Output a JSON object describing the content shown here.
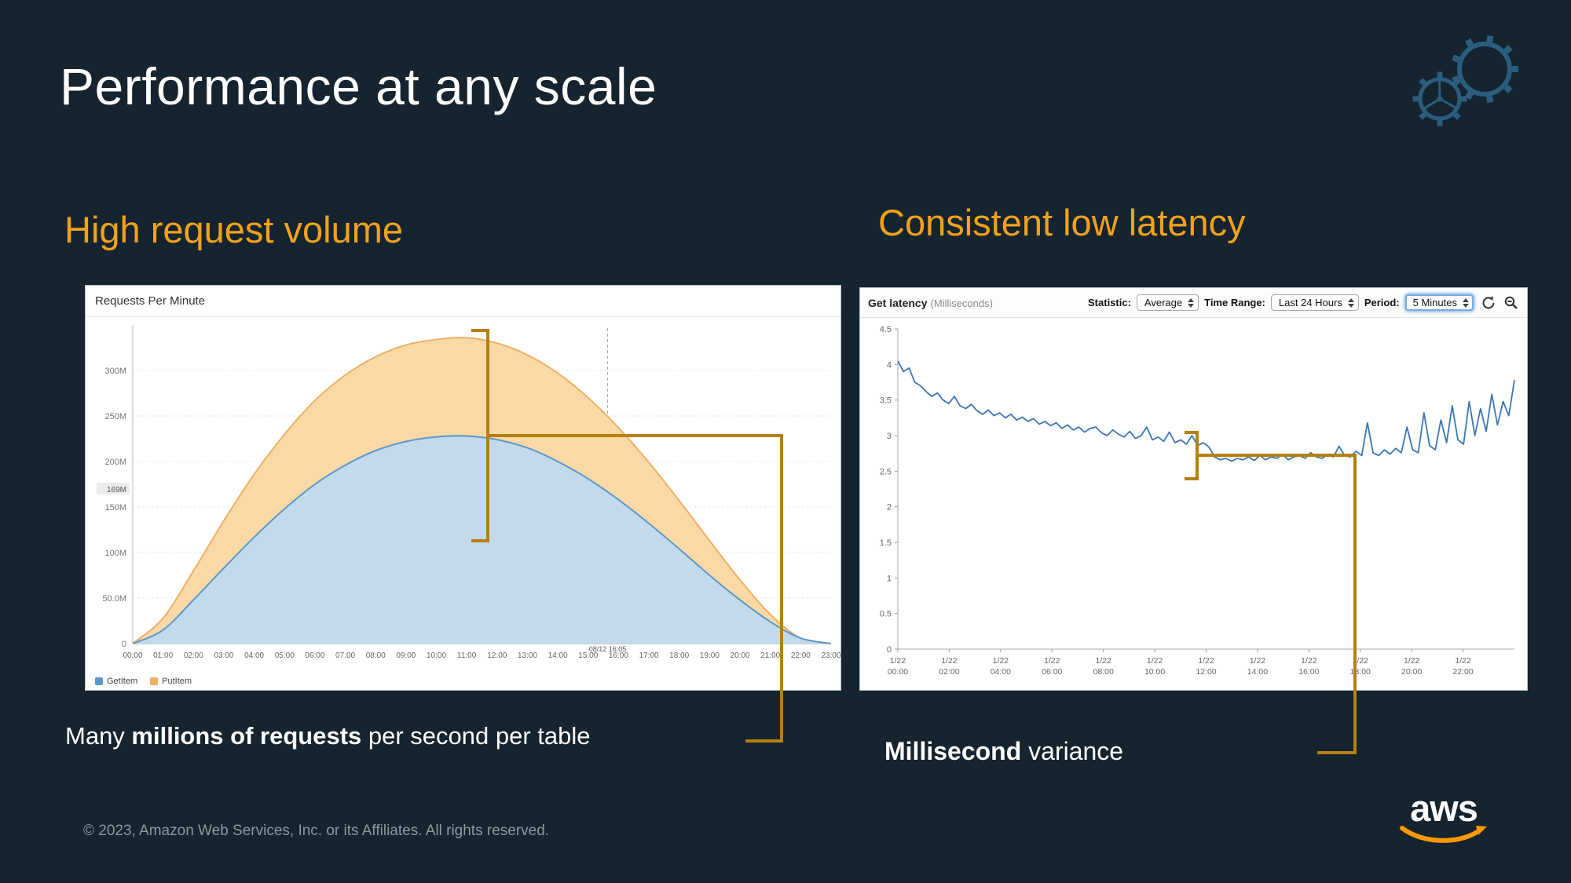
{
  "slide": {
    "title": "Performance at any scale",
    "footer": "© 2023, Amazon Web Services, Inc. or its Affiliates. All rights reserved.",
    "logo_text": "aws"
  },
  "sections": {
    "left": {
      "heading": "High request volume",
      "caption": {
        "prefix": "Many ",
        "bold": "millions of requests",
        "suffix": " per second per table"
      }
    },
    "right": {
      "heading": "Consistent low latency",
      "caption": {
        "prefix": "",
        "bold": "Millisecond",
        "suffix": " variance"
      }
    }
  },
  "cloudwatch": {
    "title_bold": "Get latency",
    "title_units": "(Milliseconds)",
    "statistic_label": "Statistic:",
    "statistic_value": "Average",
    "time_range_label": "Time Range:",
    "time_range_value": "Last 24 Hours",
    "period_label": "Period:",
    "period_value": "5 Minutes"
  },
  "icons": {
    "refresh": "circular-refresh-arrows",
    "zoom_out": "magnifier-with-minus",
    "decoration": "dynamodb-gears",
    "logo_swoosh": "aws-smile-arrow"
  },
  "colors": {
    "background": "#15242e",
    "accent_orange": "#f2a11d",
    "callout": "#b5800e",
    "aws_orange": "#ff9900",
    "latency_line": "#3c76b5"
  },
  "chart_data": [
    {
      "type": "area",
      "title": "Requests Per Minute",
      "x_labels": [
        "00:00",
        "01:00",
        "02:00",
        "03:00",
        "04:00",
        "05:00",
        "06:00",
        "07:00",
        "08:00",
        "09:00",
        "10:00",
        "11:00",
        "12:00",
        "13:00",
        "14:00",
        "15:00",
        "16:00",
        "17:00",
        "18:00",
        "19:00",
        "20:00",
        "21:00",
        "22:00",
        "23:00"
      ],
      "y_ticks": [
        "0",
        "50.0M",
        "100M",
        "150M",
        "200M",
        "250M",
        "300M"
      ],
      "y_tick_values": [
        0,
        50,
        100,
        150,
        200,
        250,
        300
      ],
      "ylim": [
        0,
        350
      ],
      "units": "requests per minute (millions)",
      "grid": true,
      "legend_position": "bottom-left",
      "series": [
        {
          "name": "GetItem",
          "color": "#5b97c9",
          "fill": "#c2daec",
          "values": [
            0,
            15,
            48,
            83,
            117,
            148,
            175,
            196,
            212,
            222,
            227,
            228,
            224,
            215,
            200,
            181,
            158,
            132,
            104,
            75,
            48,
            24,
            6,
            0
          ]
        },
        {
          "name": "PutItem",
          "color": "#eeb065",
          "fill": "#fad9a7",
          "values": [
            0,
            28,
            80,
            135,
            186,
            230,
            267,
            295,
            315,
            328,
            334,
            336,
            330,
            317,
            297,
            270,
            237,
            199,
            157,
            113,
            70,
            32,
            6,
            0
          ]
        }
      ],
      "annotations": {
        "crosshair_time_label": "08/12 16:05",
        "crosshair_x_fraction": 0.68,
        "crosshair_y_label": "169M",
        "crosshair_y_value": 169
      }
    },
    {
      "type": "line",
      "title": "Get latency (Milliseconds)",
      "ylim": [
        0,
        4.5
      ],
      "y_ticks": [
        "0",
        "0.5",
        "1",
        "1.5",
        "2",
        "2.5",
        "3",
        "3.5",
        "4",
        "4.5"
      ],
      "y_tick_values": [
        0,
        0.5,
        1,
        1.5,
        2,
        2.5,
        3,
        3.5,
        4,
        4.5
      ],
      "x_span_hours": 24,
      "x_ticks": [
        {
          "date": "1/22",
          "time": "00:00",
          "hour": 0
        },
        {
          "date": "1/22",
          "time": "02:00",
          "hour": 2
        },
        {
          "date": "1/22",
          "time": "04:00",
          "hour": 4
        },
        {
          "date": "1/22",
          "time": "06:00",
          "hour": 6
        },
        {
          "date": "1/22",
          "time": "08:00",
          "hour": 8
        },
        {
          "date": "1/22",
          "time": "10:00",
          "hour": 10
        },
        {
          "date": "1/22",
          "time": "12:00",
          "hour": 12
        },
        {
          "date": "1/22",
          "time": "14:00",
          "hour": 14
        },
        {
          "date": "1/22",
          "time": "16:00",
          "hour": 16
        },
        {
          "date": "1/22",
          "time": "18:00",
          "hour": 18
        },
        {
          "date": "1/22",
          "time": "20:00",
          "hour": 20
        },
        {
          "date": "1/22",
          "time": "22:00",
          "hour": 22
        }
      ],
      "grid": false,
      "line_color": "#3c76b5",
      "values": [
        4.05,
        3.9,
        3.95,
        3.75,
        3.7,
        3.62,
        3.55,
        3.6,
        3.5,
        3.45,
        3.55,
        3.42,
        3.38,
        3.44,
        3.35,
        3.3,
        3.36,
        3.28,
        3.32,
        3.25,
        3.3,
        3.22,
        3.26,
        3.2,
        3.24,
        3.16,
        3.2,
        3.14,
        3.18,
        3.1,
        3.15,
        3.08,
        3.12,
        3.05,
        3.1,
        3.12,
        3.04,
        3.0,
        3.08,
        3.02,
        2.98,
        3.06,
        2.96,
        3.0,
        3.12,
        2.94,
        2.98,
        2.92,
        3.05,
        2.9,
        2.94,
        2.88,
        3.0,
        2.86,
        2.9,
        2.84,
        2.7,
        2.66,
        2.68,
        2.64,
        2.68,
        2.66,
        2.7,
        2.65,
        2.72,
        2.66,
        2.7,
        2.68,
        2.74,
        2.66,
        2.7,
        2.72,
        2.68,
        2.76,
        2.7,
        2.68,
        2.74,
        2.7,
        2.85,
        2.72,
        2.7,
        2.78,
        2.72,
        3.18,
        2.76,
        2.72,
        2.8,
        2.74,
        2.82,
        2.76,
        3.12,
        2.8,
        2.76,
        3.32,
        2.86,
        2.8,
        3.22,
        2.9,
        3.42,
        2.94,
        2.88,
        3.48,
        3.0,
        3.38,
        3.06,
        3.58,
        3.15,
        3.48,
        3.28,
        3.78
      ]
    }
  ]
}
